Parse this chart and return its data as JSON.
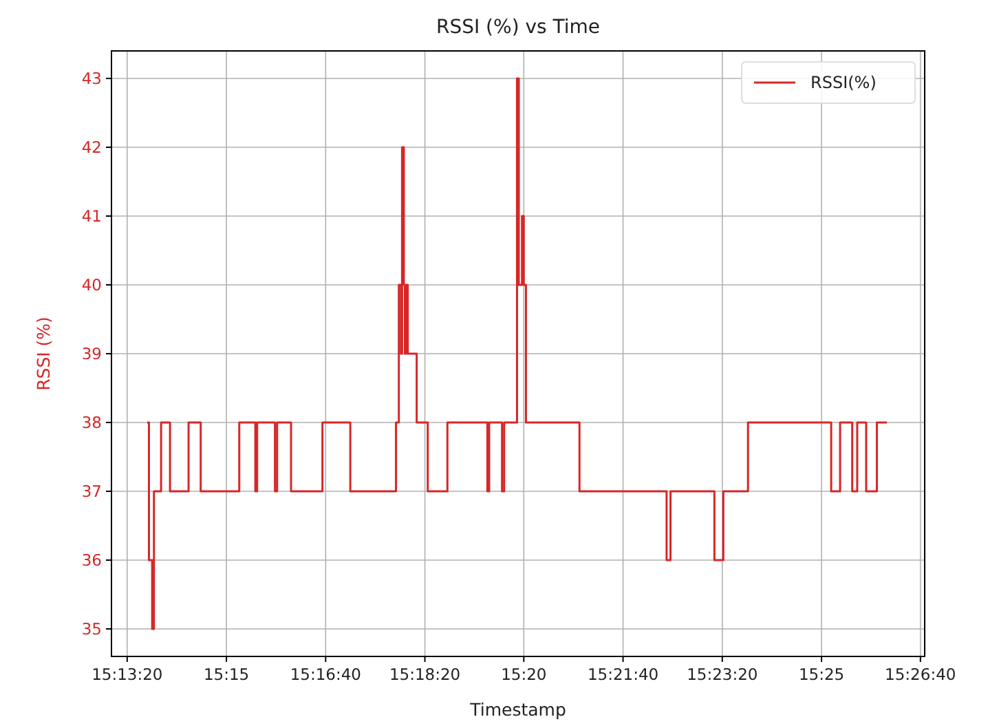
{
  "chart_data": {
    "type": "step",
    "title": "RSSI (%) vs Time",
    "xlabel": "Timestamp",
    "ylabel": "RSSI (%)",
    "series": [
      {
        "name": "RSSI(%)",
        "color": "#d62728",
        "x": [
          15.2278,
          15.2283,
          15.2292,
          15.2297,
          15.2317,
          15.2342,
          15.2394,
          15.2428,
          15.2536,
          15.2581,
          15.2586,
          15.2636,
          15.2642,
          15.2681,
          15.2769,
          15.2847,
          15.2975,
          15.2983,
          15.2989,
          15.2992,
          15.2997,
          15.3,
          15.3003,
          15.3008,
          15.3033,
          15.3064,
          15.3119,
          15.3231,
          15.3236,
          15.3272,
          15.3278,
          15.3314,
          15.3319,
          15.3328,
          15.3333,
          15.3339,
          15.3489,
          15.3733,
          15.3744,
          15.3867,
          15.3892,
          15.3961,
          15.4194,
          15.4219,
          15.4253,
          15.4267,
          15.4292,
          15.4322,
          15.435
        ],
        "values": [
          38,
          36,
          35,
          37,
          38,
          37,
          38,
          37,
          38,
          37,
          38,
          37,
          38,
          37,
          38,
          37,
          38,
          40,
          39,
          42,
          40,
          39,
          40,
          39,
          38,
          37,
          38,
          37,
          38,
          37,
          38,
          43,
          40,
          41,
          40,
          38,
          37,
          36,
          37,
          36,
          37,
          38,
          37,
          38,
          37,
          38,
          37,
          38,
          38
        ]
      }
    ],
    "xlim": [
      15.2178,
      15.4456
    ],
    "xticks": [
      {
        "value": 15.2222,
        "label": "15:13:20"
      },
      {
        "value": 15.25,
        "label": "15:15"
      },
      {
        "value": 15.2778,
        "label": "15:16:40"
      },
      {
        "value": 15.3056,
        "label": "15:18:20"
      },
      {
        "value": 15.3333,
        "label": "15:20"
      },
      {
        "value": 15.3611,
        "label": "15:21:40"
      },
      {
        "value": 15.3889,
        "label": "15:23:20"
      },
      {
        "value": 15.4167,
        "label": "15:25"
      },
      {
        "value": 15.4444,
        "label": "15:26:40"
      }
    ],
    "ylim": [
      34.6,
      43.4
    ],
    "yticks": [
      35,
      36,
      37,
      38,
      39,
      40,
      41,
      42,
      43
    ],
    "grid": true,
    "legend": "top right",
    "line_style": "solid",
    "marker": "none"
  }
}
